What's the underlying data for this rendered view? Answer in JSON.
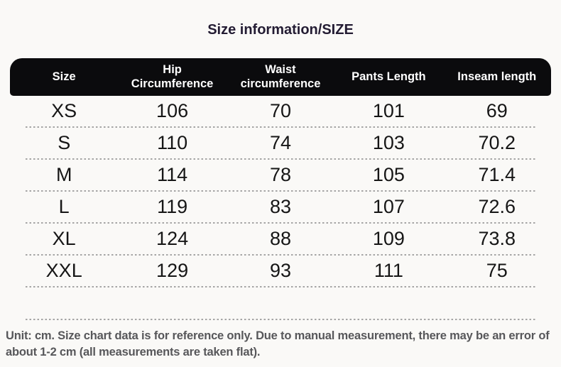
{
  "title": "Size information/SIZE",
  "footer": {
    "note": "Unit: cm. Size chart data is for reference only. Due to manual measurement, there may be an error of about 1-2 cm (all measurements are taken flat)."
  },
  "colors": {
    "page_bg": "#faf9f7",
    "header_bg": "#0b0b0d",
    "header_text": "#ffffff",
    "title_text": "#231c33",
    "body_text": "#161616",
    "dotted_line": "#a5a5a5",
    "note_text": "#57575a"
  },
  "chart_data": {
    "type": "table",
    "title": "Size information/SIZE",
    "unit": "cm",
    "columns": [
      "Size",
      "Hip Circumference",
      "Waist circumference",
      "Pants Length",
      "Inseam length"
    ],
    "rows": [
      [
        "XS",
        106,
        70,
        101,
        69
      ],
      [
        "S",
        110,
        74,
        103,
        70.2
      ],
      [
        "M",
        114,
        78,
        105,
        71.4
      ],
      [
        "L",
        119,
        83,
        107,
        72.6
      ],
      [
        "XL",
        124,
        88,
        109,
        73.8
      ],
      [
        "XXL",
        129,
        93,
        111,
        75
      ]
    ]
  }
}
